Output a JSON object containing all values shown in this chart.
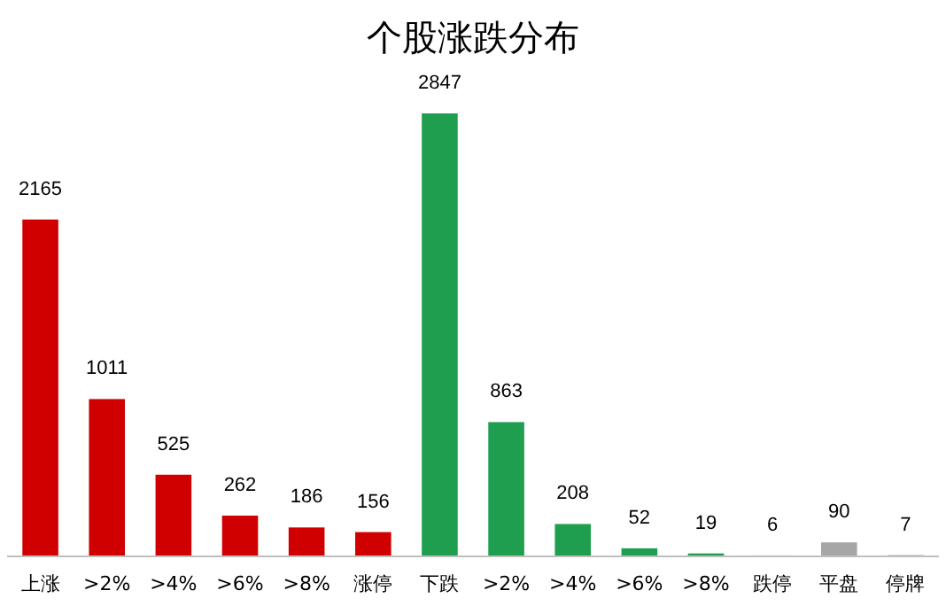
{
  "chart_data": {
    "type": "bar",
    "title": "个股涨跌分布",
    "categories": [
      "上涨",
      ">2%",
      ">4%",
      ">6%",
      ">8%",
      "涨停",
      "下跌",
      ">2%",
      ">4%",
      ">6%",
      ">8%",
      "跌停",
      "平盘",
      "停牌"
    ],
    "values": [
      2165,
      1011,
      525,
      262,
      186,
      156,
      2847,
      863,
      208,
      52,
      19,
      6,
      90,
      7
    ],
    "colors": [
      "#d00000",
      "#d00000",
      "#d00000",
      "#d00000",
      "#d00000",
      "#d00000",
      "#1e9e4e",
      "#1e9e4e",
      "#1e9e4e",
      "#1e9e4e",
      "#1e9e4e",
      "#1e9e4e",
      "#a6a6a6",
      "#404040"
    ],
    "data_labels": true
  }
}
